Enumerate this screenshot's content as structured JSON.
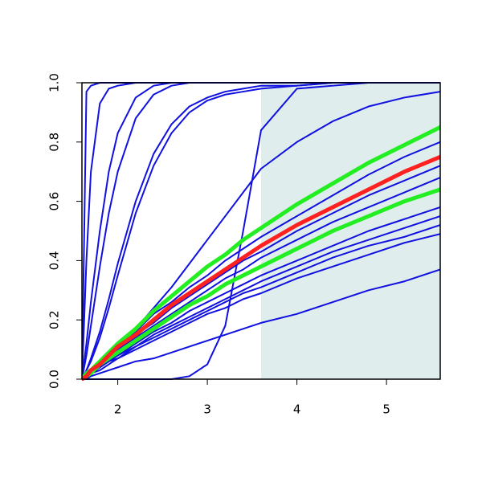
{
  "chart_data": {
    "type": "line",
    "x": [
      1.6,
      1.65,
      1.7,
      1.8,
      1.9,
      2.0,
      2.2,
      2.4,
      2.6,
      2.8,
      3.0,
      3.2,
      3.4,
      3.6,
      4.0,
      4.4,
      4.8,
      5.2,
      5.6
    ],
    "shaded_from": 3.6,
    "shade_color": "#e0eded",
    "series": [
      {
        "color": "#1010e0",
        "values": [
          0,
          0.97,
          0.99,
          1,
          1,
          1,
          1,
          1,
          1,
          1,
          1,
          1,
          1,
          1,
          1,
          1,
          1,
          1,
          1
        ]
      },
      {
        "color": "#1010e0",
        "values": [
          0,
          0.4,
          0.7,
          0.93,
          0.98,
          0.99,
          1,
          1,
          1,
          1,
          1,
          1,
          1,
          1,
          1,
          1,
          1,
          1,
          1
        ]
      },
      {
        "color": "#1010e0",
        "values": [
          0,
          0.12,
          0.26,
          0.5,
          0.7,
          0.83,
          0.95,
          0.99,
          1,
          1,
          1,
          1,
          1,
          1,
          1,
          1,
          1,
          1,
          1
        ]
      },
      {
        "color": "#1010e0",
        "values": [
          0,
          0.08,
          0.18,
          0.38,
          0.56,
          0.7,
          0.88,
          0.96,
          0.99,
          1,
          1,
          1,
          1,
          1,
          1,
          1,
          1,
          1,
          1
        ]
      },
      {
        "color": "#1010e0",
        "values": [
          0,
          0.03,
          0.07,
          0.16,
          0.27,
          0.39,
          0.6,
          0.76,
          0.86,
          0.92,
          0.95,
          0.97,
          0.98,
          0.99,
          0.99,
          1,
          1,
          1,
          1
        ]
      },
      {
        "color": "#1010e0",
        "values": [
          0,
          0.03,
          0.06,
          0.14,
          0.24,
          0.35,
          0.56,
          0.72,
          0.83,
          0.9,
          0.94,
          0.96,
          0.97,
          0.98,
          0.99,
          1,
          1,
          1,
          1
        ]
      },
      {
        "color": "#1010e0",
        "values": [
          0,
          0,
          0,
          0,
          0,
          0,
          0,
          0,
          0,
          0.01,
          0.05,
          0.18,
          0.5,
          0.84,
          0.98,
          0.99,
          1,
          1,
          1
        ]
      },
      {
        "color": "#1010e0",
        "values": [
          0,
          0.01,
          0.02,
          0.05,
          0.08,
          0.11,
          0.17,
          0.24,
          0.31,
          0.39,
          0.47,
          0.55,
          0.63,
          0.71,
          0.8,
          0.87,
          0.92,
          0.95,
          0.97
        ]
      },
      {
        "color": "#1010e0",
        "values": [
          0,
          0,
          0.01,
          0.02,
          0.03,
          0.04,
          0.06,
          0.07,
          0.09,
          0.11,
          0.13,
          0.15,
          0.17,
          0.19,
          0.22,
          0.26,
          0.3,
          0.33,
          0.37
        ]
      },
      {
        "color": "#1010e0",
        "values": [
          0,
          0.01,
          0.03,
          0.06,
          0.08,
          0.11,
          0.16,
          0.22,
          0.26,
          0.31,
          0.35,
          0.4,
          0.44,
          0.48,
          0.55,
          0.62,
          0.69,
          0.75,
          0.8
        ]
      },
      {
        "color": "#1010e0",
        "values": [
          0,
          0.01,
          0.03,
          0.05,
          0.08,
          0.1,
          0.15,
          0.19,
          0.24,
          0.28,
          0.32,
          0.36,
          0.4,
          0.43,
          0.5,
          0.56,
          0.62,
          0.67,
          0.72
        ]
      },
      {
        "color": "#1010e0",
        "values": [
          0,
          0.01,
          0.02,
          0.05,
          0.07,
          0.1,
          0.14,
          0.18,
          0.22,
          0.26,
          0.3,
          0.34,
          0.37,
          0.41,
          0.47,
          0.53,
          0.58,
          0.63,
          0.68
        ]
      },
      {
        "color": "#1010e0",
        "values": [
          0,
          0.01,
          0.02,
          0.04,
          0.06,
          0.08,
          0.12,
          0.16,
          0.19,
          0.23,
          0.26,
          0.29,
          0.32,
          0.35,
          0.4,
          0.45,
          0.5,
          0.54,
          0.58
        ]
      },
      {
        "color": "#1010e0",
        "values": [
          0,
          0.01,
          0.02,
          0.04,
          0.06,
          0.08,
          0.11,
          0.15,
          0.18,
          0.21,
          0.24,
          0.27,
          0.3,
          0.33,
          0.38,
          0.43,
          0.47,
          0.51,
          0.55
        ]
      },
      {
        "color": "#1010e0",
        "values": [
          0,
          0.01,
          0.02,
          0.04,
          0.06,
          0.07,
          0.11,
          0.14,
          0.17,
          0.2,
          0.23,
          0.26,
          0.29,
          0.31,
          0.36,
          0.41,
          0.45,
          0.48,
          0.52
        ]
      },
      {
        "color": "#1010e0",
        "values": [
          0,
          0.01,
          0.02,
          0.03,
          0.05,
          0.07,
          0.1,
          0.13,
          0.16,
          0.19,
          0.22,
          0.24,
          0.27,
          0.29,
          0.34,
          0.38,
          0.42,
          0.46,
          0.49
        ]
      },
      {
        "color": "#22ee22",
        "width": 5,
        "values": [
          0,
          0.02,
          0.03,
          0.06,
          0.09,
          0.12,
          0.17,
          0.23,
          0.28,
          0.33,
          0.38,
          0.42,
          0.47,
          0.51,
          0.59,
          0.66,
          0.73,
          0.79,
          0.85
        ]
      },
      {
        "color": "#22ee22",
        "width": 5,
        "values": [
          0,
          0.01,
          0.02,
          0.05,
          0.07,
          0.09,
          0.13,
          0.17,
          0.21,
          0.25,
          0.28,
          0.32,
          0.35,
          0.38,
          0.44,
          0.5,
          0.55,
          0.6,
          0.64
        ]
      },
      {
        "color": "#ff2020",
        "width": 5,
        "values": [
          0,
          0.01,
          0.03,
          0.05,
          0.08,
          0.11,
          0.15,
          0.2,
          0.25,
          0.29,
          0.33,
          0.37,
          0.41,
          0.45,
          0.52,
          0.58,
          0.64,
          0.7,
          0.75
        ]
      }
    ],
    "xlim": [
      1.6,
      5.6
    ],
    "ylim": [
      0,
      1
    ],
    "xticks": [
      2,
      3,
      4,
      5
    ],
    "yticks": [
      {
        "value": 0,
        "label": "0.0"
      },
      {
        "value": 0.2,
        "label": "0.2"
      },
      {
        "value": 0.4,
        "label": "0.4"
      },
      {
        "value": 0.6,
        "label": "0.6"
      },
      {
        "value": 0.8,
        "label": "0.8"
      },
      {
        "value": 1,
        "label": "1.0"
      }
    ]
  }
}
